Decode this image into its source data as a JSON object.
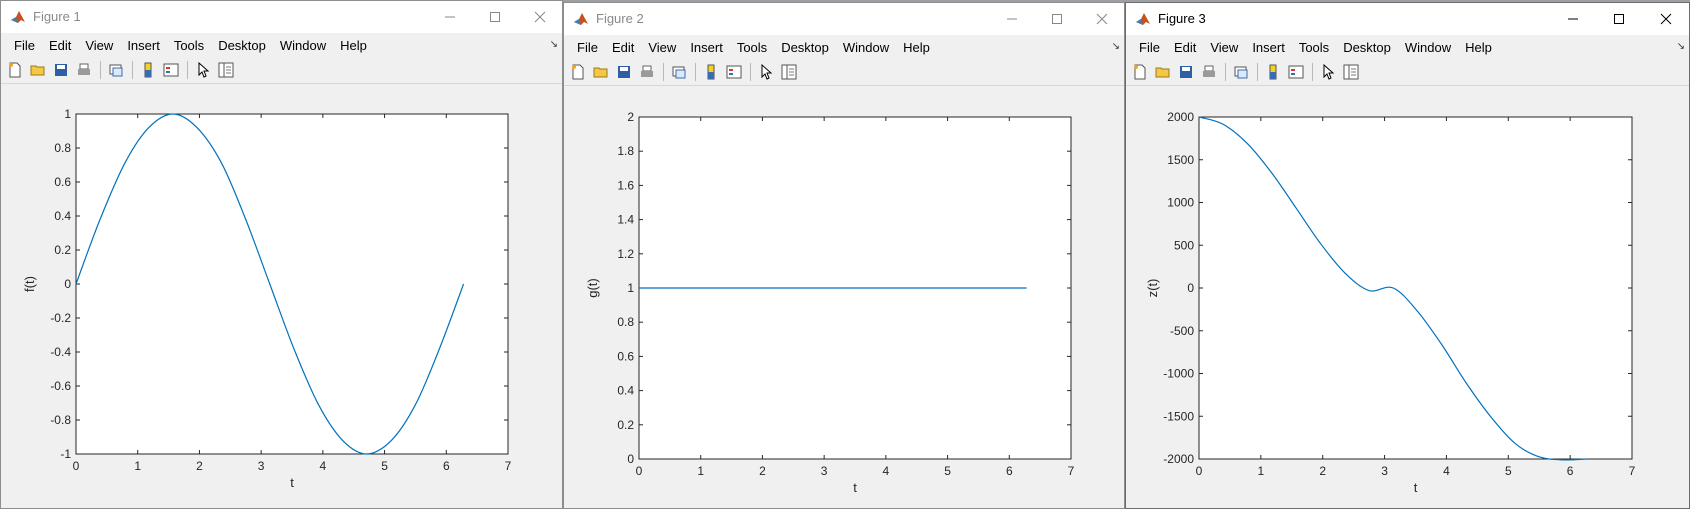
{
  "menu": [
    "File",
    "Edit",
    "View",
    "Insert",
    "Tools",
    "Desktop",
    "Window",
    "Help"
  ],
  "windows": [
    {
      "title": "Figure 1",
      "chart_data": {
        "type": "line",
        "xlabel": "t",
        "ylabel": "f(t)",
        "xlim": [
          0,
          7
        ],
        "ylim": [
          -1,
          1
        ],
        "xticks": [
          0,
          1,
          2,
          3,
          4,
          5,
          6,
          7
        ],
        "yticks": [
          -1,
          -0.8,
          -0.6,
          -0.4,
          -0.2,
          0,
          0.2,
          0.4,
          0.6,
          0.8,
          1
        ],
        "ytick_labels": [
          "-1",
          "-0.8",
          "-0.6",
          "-0.4",
          "-0.2",
          "0",
          "0.2",
          "0.4",
          "0.6",
          "0.8",
          "1"
        ],
        "grid": false,
        "x": [
          0,
          0.39,
          0.79,
          1.18,
          1.57,
          1.96,
          2.36,
          2.75,
          3.14,
          3.53,
          3.93,
          4.32,
          4.71,
          5.11,
          5.5,
          5.89,
          6.28
        ],
        "y": [
          0,
          0.38,
          0.71,
          0.92,
          1,
          0.92,
          0.71,
          0.38,
          0,
          -0.38,
          -0.71,
          -0.92,
          -1,
          -0.92,
          -0.71,
          -0.38,
          0
        ],
        "line_color": "#0072bd"
      }
    },
    {
      "title": "Figure 2",
      "chart_data": {
        "type": "line",
        "xlabel": "t",
        "ylabel": "g(t)",
        "xlim": [
          0,
          7
        ],
        "ylim": [
          0,
          2
        ],
        "xticks": [
          0,
          1,
          2,
          3,
          4,
          5,
          6,
          7
        ],
        "yticks": [
          0,
          0.2,
          0.4,
          0.6,
          0.8,
          1,
          1.2,
          1.4,
          1.6,
          1.8,
          2
        ],
        "ytick_labels": [
          "0",
          "0.2",
          "0.4",
          "0.6",
          "0.8",
          "1",
          "1.2",
          "1.4",
          "1.6",
          "1.8",
          "2"
        ],
        "grid": false,
        "x": [
          0,
          6.28
        ],
        "y": [
          1,
          1
        ],
        "line_color": "#0072bd"
      }
    },
    {
      "title": "Figure 3",
      "chart_data": {
        "type": "line",
        "xlabel": "t",
        "ylabel": "z(t)",
        "xlim": [
          0,
          7
        ],
        "ylim": [
          -2000,
          2000
        ],
        "xticks": [
          0,
          1,
          2,
          3,
          4,
          5,
          6,
          7
        ],
        "yticks": [
          -2000,
          -1500,
          -1000,
          -500,
          0,
          500,
          1000,
          1500,
          2000
        ],
        "ytick_labels": [
          "-2000",
          "-1500",
          "-1000",
          "-500",
          "0",
          "500",
          "1000",
          "1500",
          "2000"
        ],
        "grid": false,
        "x": [
          0,
          0.39,
          0.79,
          1.18,
          1.57,
          1.96,
          2.36,
          2.75,
          3.14,
          3.53,
          3.93,
          4.32,
          4.71,
          5.11,
          5.5,
          5.89,
          6.28
        ],
        "y": [
          2000,
          1915,
          1684,
          1342,
          935,
          524,
          175,
          -30,
          0,
          -270,
          -668,
          -1111,
          -1500,
          -1818,
          -1975,
          -2010,
          -2000
        ],
        "line_color": "#0072bd"
      }
    }
  ]
}
